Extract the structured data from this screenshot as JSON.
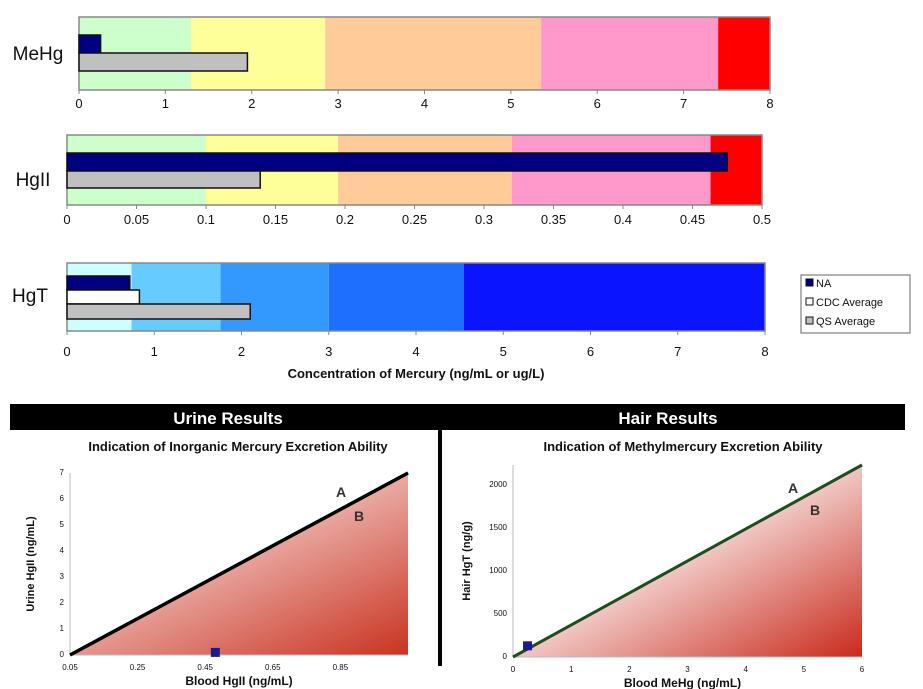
{
  "chart_data": [
    {
      "type": "bar",
      "orientation": "horizontal",
      "category": "MeHg",
      "xlim": [
        0,
        8
      ],
      "xticks": [
        "0",
        "1",
        "2",
        "3",
        "4",
        "5",
        "6",
        "7",
        "8"
      ],
      "bands": [
        {
          "from": 0,
          "to": 1.3,
          "color": "#ccffcc"
        },
        {
          "from": 1.3,
          "to": 2.85,
          "color": "#ffff99"
        },
        {
          "from": 2.85,
          "to": 5.35,
          "color": "#ffcc99"
        },
        {
          "from": 5.35,
          "to": 7.4,
          "color": "#ff99cc"
        },
        {
          "from": 7.4,
          "to": 8,
          "color": "#ff0000"
        }
      ],
      "series": [
        {
          "name": "NA",
          "value": 0.25
        },
        {
          "name": "QS Average",
          "value": 1.95
        }
      ]
    },
    {
      "type": "bar",
      "orientation": "horizontal",
      "category": "HgII",
      "xlim": [
        0,
        0.5
      ],
      "xticks": [
        "0",
        "0.05",
        "0.1",
        "0.15",
        "0.2",
        "0.25",
        "0.3",
        "0.35",
        "0.4",
        "0.45",
        "0.5"
      ],
      "bands": [
        {
          "from": 0,
          "to": 0.1,
          "color": "#ccffcc"
        },
        {
          "from": 0.1,
          "to": 0.195,
          "color": "#ffff99"
        },
        {
          "from": 0.195,
          "to": 0.32,
          "color": "#ffcc99"
        },
        {
          "from": 0.32,
          "to": 0.463,
          "color": "#ff99cc"
        },
        {
          "from": 0.463,
          "to": 0.5,
          "color": "#ff0000"
        }
      ],
      "series": [
        {
          "name": "NA",
          "value": 0.475
        },
        {
          "name": "QS Average",
          "value": 0.139
        }
      ]
    },
    {
      "type": "bar",
      "orientation": "horizontal",
      "category": "HgT",
      "xlim": [
        0,
        8
      ],
      "xticks": [
        "0",
        "1",
        "2",
        "3",
        "4",
        "5",
        "6",
        "7",
        "8"
      ],
      "xlabel": "Concentration of Mercury (ng/mL or ug/L)",
      "bands": [
        {
          "from": 0,
          "to": 0.74,
          "color": "#ccffff"
        },
        {
          "from": 0.74,
          "to": 1.76,
          "color": "#66ccff"
        },
        {
          "from": 1.76,
          "to": 3.0,
          "color": "#3399ff"
        },
        {
          "from": 3.0,
          "to": 4.55,
          "color": "#1f6fff"
        },
        {
          "from": 4.55,
          "to": 8,
          "color": "#0a14ff"
        }
      ],
      "series": [
        {
          "name": "NA",
          "value": 0.72
        },
        {
          "name": "CDC Average",
          "value": 0.83
        },
        {
          "name": "QS Average",
          "value": 2.1
        }
      ],
      "legend": {
        "position": "right",
        "entries": [
          "NA",
          "CDC Average",
          "QS Average"
        ]
      }
    },
    {
      "type": "scatter",
      "section": "Urine Results",
      "title": "Indication of Inorganic Mercury Excretion Ability",
      "xlabel": "Blood HgII (ng/mL)",
      "ylabel": "Urine HgII (ng/mL)",
      "xlim": [
        0.05,
        1.05
      ],
      "ylim": [
        0,
        7
      ],
      "xticks": [
        "0.05",
        "0.25",
        "0.45",
        "0.65",
        "0.85"
      ],
      "yticks": [
        "0",
        "1",
        "2",
        "3",
        "4",
        "5",
        "6",
        "7"
      ],
      "threshold_line": {
        "from": [
          0.05,
          0
        ],
        "to": [
          1.05,
          7
        ],
        "color": "#000000"
      },
      "region_labels": [
        "A",
        "B"
      ],
      "points": [
        {
          "x": 0.48,
          "y": 0.1
        }
      ]
    },
    {
      "type": "scatter",
      "section": "Hair Results",
      "title": "Indication of Methylmercury Excretion Ability",
      "xlabel": "Blood MeHg (ng/mL)",
      "ylabel": "Hair HgT (ng/g)",
      "xlim": [
        0,
        6
      ],
      "ylim": [
        0,
        2230
      ],
      "xticks": [
        "0",
        "1",
        "2",
        "3",
        "4",
        "5",
        "6"
      ],
      "yticks": [
        "0",
        "500",
        "1000",
        "1500",
        "2000"
      ],
      "threshold_line": {
        "from": [
          0,
          0
        ],
        "to": [
          6,
          2230
        ],
        "color": "#1e4d1e"
      },
      "region_labels": [
        "A",
        "B"
      ],
      "points": [
        {
          "x": 0.25,
          "y": 130
        }
      ]
    }
  ],
  "colors": {
    "na": "#000080",
    "cdc": "#ffffff",
    "qs": "#c0c0c0",
    "point": "#1a1a8c",
    "fill_dark": "#cc3322"
  }
}
